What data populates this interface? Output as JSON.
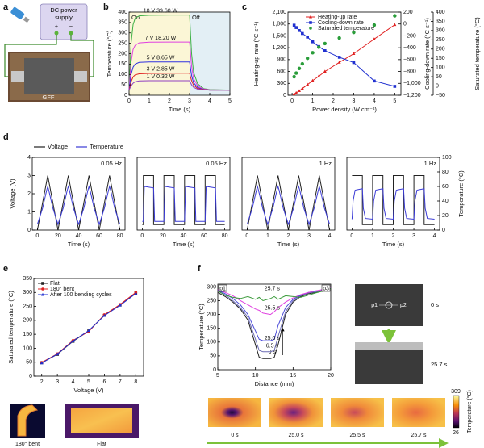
{
  "figure": {
    "panels": [
      "a",
      "b",
      "c",
      "d",
      "e",
      "f"
    ]
  },
  "diagram": {
    "supply": "DC power supply",
    "plus": "+",
    "minus": "−",
    "sample": "GFF"
  },
  "chart_data": [
    {
      "type": "line",
      "xlabel": "Time (s)",
      "ylabel": "Temperature (°C)",
      "xlim": [
        0,
        5
      ],
      "xticks": [
        0,
        1,
        2,
        3,
        4,
        5
      ],
      "ylim": [
        0,
        400
      ],
      "yticks": [
        0,
        50,
        100,
        150,
        200,
        250,
        300,
        350,
        400
      ],
      "regions": [
        {
          "label": "On",
          "x": [
            0,
            3
          ],
          "color": "#fbf6d6"
        },
        {
          "label": "Off",
          "x": [
            3,
            5
          ],
          "color": "#e3eff5"
        }
      ],
      "x": [
        0,
        0.1,
        0.2,
        0.3,
        0.5,
        1,
        2,
        3,
        3.1,
        3.2,
        3.4,
        3.7,
        4,
        5
      ],
      "series": [
        {
          "name": "10 V 39.60 W",
          "color": "#3cb043",
          "values": [
            25,
            250,
            340,
            370,
            382,
            385,
            386,
            386,
            200,
            110,
            55,
            32,
            27,
            25
          ]
        },
        {
          "name": "7 V 18.20 W",
          "color": "#e040e0",
          "values": [
            25,
            160,
            220,
            240,
            252,
            255,
            256,
            256,
            140,
            80,
            45,
            30,
            26,
            25
          ]
        },
        {
          "name": "5 V 8.65 W",
          "color": "#3030e0",
          "values": [
            25,
            100,
            135,
            150,
            158,
            160,
            160,
            160,
            95,
            60,
            38,
            28,
            25,
            25
          ]
        },
        {
          "name": "3 V 2.85 W",
          "color": "#e02020",
          "values": [
            25,
            65,
            88,
            98,
            103,
            105,
            106,
            106,
            70,
            48,
            33,
            27,
            25,
            25
          ]
        },
        {
          "name": "1 V 0.32 W",
          "color": "#9040c0",
          "values": [
            25,
            45,
            58,
            65,
            69,
            70,
            70,
            70,
            50,
            38,
            29,
            26,
            25,
            25
          ]
        }
      ]
    },
    {
      "type": "line",
      "xlabel": "Power density (W cm⁻²)",
      "ylabel": "Heating-up rate (°C s⁻¹)",
      "y2label": "Cooling-down rate (°C s⁻¹)",
      "y3label": "Saturated temperature (°C)",
      "xlim": [
        -0.2,
        5.3
      ],
      "xticks": [
        0,
        1,
        2,
        3,
        4,
        5
      ],
      "ylim": [
        0,
        2100
      ],
      "yticks": [
        0,
        300,
        600,
        900,
        {
          "value": 1200,
          "label": "1,200"
        },
        {
          "value": 1500,
          "label": "1,500"
        },
        {
          "value": 1800,
          "label": "1,800"
        },
        {
          "value": 2100,
          "label": "2,100"
        }
      ],
      "y2lim": [
        -1200,
        200
      ],
      "y2ticks": [
        {
          "value": -1200,
          "label": "−1,200"
        },
        {
          "value": -1000,
          "label": "−1,000"
        },
        {
          "value": -800,
          "label": "−800"
        },
        {
          "value": -600,
          "label": "−600"
        },
        {
          "value": -400,
          "label": "−400"
        },
        {
          "value": -200,
          "label": "−200"
        },
        0,
        200
      ],
      "y3lim": [
        -50,
        400
      ],
      "y3ticks": [
        {
          "value": -50,
          "label": "−50"
        },
        0,
        50,
        100,
        150,
        200,
        250,
        300,
        350,
        400
      ],
      "legend": "upper left",
      "x": [
        0.1,
        0.2,
        0.35,
        0.5,
        0.75,
        1,
        1.3,
        1.6,
        2.3,
        3,
        4,
        5
      ],
      "series": [
        {
          "name": "Heating-up rate",
          "color": "#e02020",
          "marker": "triangle",
          "values": [
            30,
            60,
            110,
            170,
            270,
            370,
            480,
            600,
            830,
            1050,
            1420,
            1780
          ]
        },
        {
          "name": "Cooling-down rate",
          "color": "#2030d0",
          "marker": "square",
          "axis": "y2",
          "values": [
            -20,
            -60,
            -110,
            -160,
            -220,
            -300,
            -380,
            -450,
            -560,
            -650,
            -960,
            -1050
          ]
        },
        {
          "name": "Saturated temperature",
          "color": "#2a9d3a",
          "marker": "circle",
          "axis": "y3",
          "line": false,
          "values": [
            50,
            70,
            95,
            120,
            150,
            180,
            210,
            230,
            260,
            290,
            330,
            380
          ]
        }
      ]
    },
    {
      "type": "line",
      "xlabel": "Time (s)",
      "ylabel": "Voltage (V)",
      "y2label": "Temperature (°C)",
      "ylim": [
        0,
        4
      ],
      "yticks": [
        0,
        1,
        2,
        3,
        4
      ],
      "y2lim": [
        0,
        100
      ],
      "y2ticks": [
        0,
        20,
        40,
        60,
        80,
        100
      ],
      "series": [
        {
          "name": "Voltage",
          "color": "#222222"
        },
        {
          "name": "Temperature",
          "color": "#3b3bd6",
          "axis": "y2"
        }
      ],
      "panels": [
        {
          "annotation": "0.05 Hz",
          "xlim": [
            -5,
            85
          ],
          "xticks": [
            0,
            20,
            40,
            60,
            80
          ],
          "series": [
            {
              "x": [
                0,
                10,
                20,
                30,
                40,
                50,
                60,
                70,
                80
              ],
              "values": [
                0,
                3,
                0,
                3,
                0,
                3,
                0,
                3,
                0
              ]
            },
            {
              "x": [
                0,
                5,
                9,
                10,
                11,
                15,
                20,
                25,
                29,
                30,
                31,
                35,
                40,
                45,
                49,
                50,
                51,
                55,
                60,
                65,
                69,
                70,
                71,
                75,
                80
              ],
              "values": [
                8,
                30,
                55,
                60,
                55,
                30,
                8,
                30,
                55,
                60,
                55,
                30,
                8,
                30,
                55,
                60,
                55,
                30,
                8,
                30,
                55,
                60,
                55,
                30,
                8
              ]
            }
          ]
        },
        {
          "annotation": "0.05 Hz",
          "xlim": [
            -5,
            85
          ],
          "xticks": [
            0,
            20,
            40,
            60,
            80
          ],
          "series": [
            {
              "x": [
                0,
                1,
                1,
                11,
                11,
                21,
                21,
                31,
                31,
                41,
                41,
                51,
                51,
                61,
                61,
                71,
                71,
                80
              ],
              "values": [
                0.3,
                0.3,
                3,
                3,
                0.3,
                0.3,
                3,
                3,
                0.3,
                0.3,
                3,
                3,
                0.3,
                0.3,
                3,
                3,
                0.3,
                0.3
              ]
            },
            {
              "x": [
                0,
                1,
                2,
                11,
                12,
                21,
                22,
                31,
                32,
                41,
                42,
                51,
                52,
                61,
                62,
                71,
                72,
                80
              ],
              "values": [
                12,
                12,
                60,
                58,
                12,
                12,
                60,
                58,
                12,
                12,
                60,
                58,
                12,
                12,
                60,
                58,
                12,
                12
              ]
            }
          ]
        },
        {
          "annotation": "1 Hz",
          "xlim": [
            -0.25,
            4.25
          ],
          "xticks": [
            0,
            1,
            2,
            3,
            4
          ],
          "series": [
            {
              "x": [
                0,
                0.5,
                1,
                1.5,
                2,
                2.5,
                3,
                3.5,
                4
              ],
              "values": [
                0,
                3,
                0,
                3,
                0,
                3,
                0,
                3,
                0
              ]
            },
            {
              "x": [
                0,
                0.25,
                0.45,
                0.5,
                0.55,
                0.75,
                1,
                1.25,
                1.45,
                1.5,
                1.55,
                1.75,
                2,
                2.25,
                2.45,
                2.5,
                2.55,
                2.75,
                3,
                3.25,
                3.45,
                3.5,
                3.55,
                3.75,
                4
              ],
              "values": [
                8,
                30,
                55,
                60,
                55,
                30,
                8,
                30,
                55,
                60,
                55,
                30,
                8,
                30,
                55,
                60,
                55,
                30,
                8,
                30,
                55,
                60,
                55,
                30,
                8
              ]
            }
          ]
        },
        {
          "annotation": "1 Hz",
          "xlim": [
            -0.25,
            4.25
          ],
          "xticks": [
            0,
            1,
            2,
            3,
            4
          ],
          "series": [
            {
              "x": [
                0,
                0.5,
                0.5,
                1,
                1,
                1.5,
                1.5,
                2,
                2,
                2.5,
                2.5,
                3,
                3,
                3.5,
                3.5,
                4
              ],
              "values": [
                3,
                3,
                0.3,
                0.3,
                3,
                3,
                0.3,
                0.3,
                3,
                3,
                0.3,
                0.3,
                3,
                3,
                0.3,
                0.3
              ]
            },
            {
              "x": [
                0,
                0.05,
                0.15,
                0.5,
                0.55,
                0.65,
                1,
                1.05,
                1.15,
                1.5,
                1.55,
                1.65,
                2,
                2.05,
                2.15,
                2.5,
                2.55,
                2.65,
                3,
                3.05,
                3.15,
                3.5,
                3.55,
                3.65,
                4
              ],
              "values": [
                15,
                40,
                55,
                57,
                30,
                16,
                15,
                40,
                55,
                57,
                30,
                16,
                15,
                40,
                55,
                57,
                30,
                16,
                15,
                40,
                55,
                57,
                30,
                16,
                15
              ]
            }
          ]
        }
      ]
    },
    {
      "type": "line",
      "xlabel": "Voltage (V)",
      "ylabel": "Saturated temperature (°C)",
      "xlim": [
        1.5,
        8.5
      ],
      "xticks": [
        2,
        3,
        4,
        5,
        6,
        7,
        8
      ],
      "ylim": [
        0,
        350
      ],
      "yticks": [
        0,
        50,
        100,
        150,
        200,
        250,
        300,
        350
      ],
      "legend": "upper left",
      "x": [
        2,
        3,
        4,
        5,
        6,
        7,
        8
      ],
      "series": [
        {
          "name": "Flat",
          "color": "#222222",
          "marker": "square",
          "values": [
            48,
            78,
            125,
            162,
            218,
            255,
            298
          ]
        },
        {
          "name": "180° bent",
          "color": "#e02020",
          "marker": "circle",
          "values": [
            49,
            80,
            128,
            160,
            220,
            257,
            300
          ]
        },
        {
          "name": "After 100 bending cycles",
          "color": "#2030d0",
          "marker": "triangle",
          "values": [
            47,
            79,
            126,
            163,
            217,
            254,
            296
          ]
        }
      ]
    },
    {
      "type": "line",
      "xlabel": "Distance (mm)",
      "ylabel": "Temperature (°C)",
      "xlim": [
        5,
        20
      ],
      "xticks": [
        5,
        10,
        15,
        20
      ],
      "ylim": [
        0,
        310
      ],
      "yticks": [
        0,
        50,
        100,
        150,
        200,
        250,
        300
      ],
      "annotations": [
        "p1",
        "p3"
      ],
      "x": [
        5,
        6,
        7,
        8,
        9,
        10,
        10.5,
        11,
        12,
        12.5,
        13,
        14,
        15,
        16,
        17,
        18,
        19,
        20
      ],
      "series": [
        {
          "name": "0 s",
          "color": "#222222",
          "values": [
            280,
            265,
            245,
            220,
            180,
            90,
            45,
            40,
            40,
            45,
            90,
            200,
            245,
            265,
            275,
            280,
            285,
            295
          ]
        },
        {
          "name": "6.5 s",
          "color": "#6b6bb5",
          "values": [
            285,
            270,
            250,
            225,
            190,
            110,
            70,
            65,
            65,
            70,
            120,
            210,
            250,
            268,
            278,
            282,
            288,
            296
          ]
        },
        {
          "name": "25.0 s",
          "color": "#4a4ad8",
          "values": [
            288,
            275,
            258,
            235,
            200,
            140,
            110,
            105,
            105,
            110,
            160,
            225,
            255,
            270,
            280,
            285,
            290,
            297
          ]
        },
        {
          "name": "25.5 s",
          "color": "#e040e0",
          "values": [
            290,
            280,
            268,
            250,
            235,
            220,
            215,
            205,
            200,
            210,
            225,
            245,
            260,
            272,
            280,
            286,
            290,
            298
          ]
        },
        {
          "name": "25.7 s",
          "color": "#3a9a3a",
          "values": [
            285,
            270,
            262,
            258,
            265,
            255,
            262,
            250,
            258,
            265,
            255,
            268,
            265,
            262,
            270,
            278,
            285,
            295
          ]
        }
      ]
    }
  ],
  "images": {
    "e": [
      "180° bent",
      "Flat"
    ],
    "f_photos": {
      "probe_left": "p1",
      "probe_right": "p2",
      "times": [
        "0 s",
        "25.7 s"
      ]
    },
    "f_thermal": [
      "0 s",
      "25.0 s",
      "25.5 s",
      "25.7 s"
    ],
    "colorbar": {
      "max": 309,
      "min": 26,
      "label": "Temperature (°C)"
    }
  }
}
